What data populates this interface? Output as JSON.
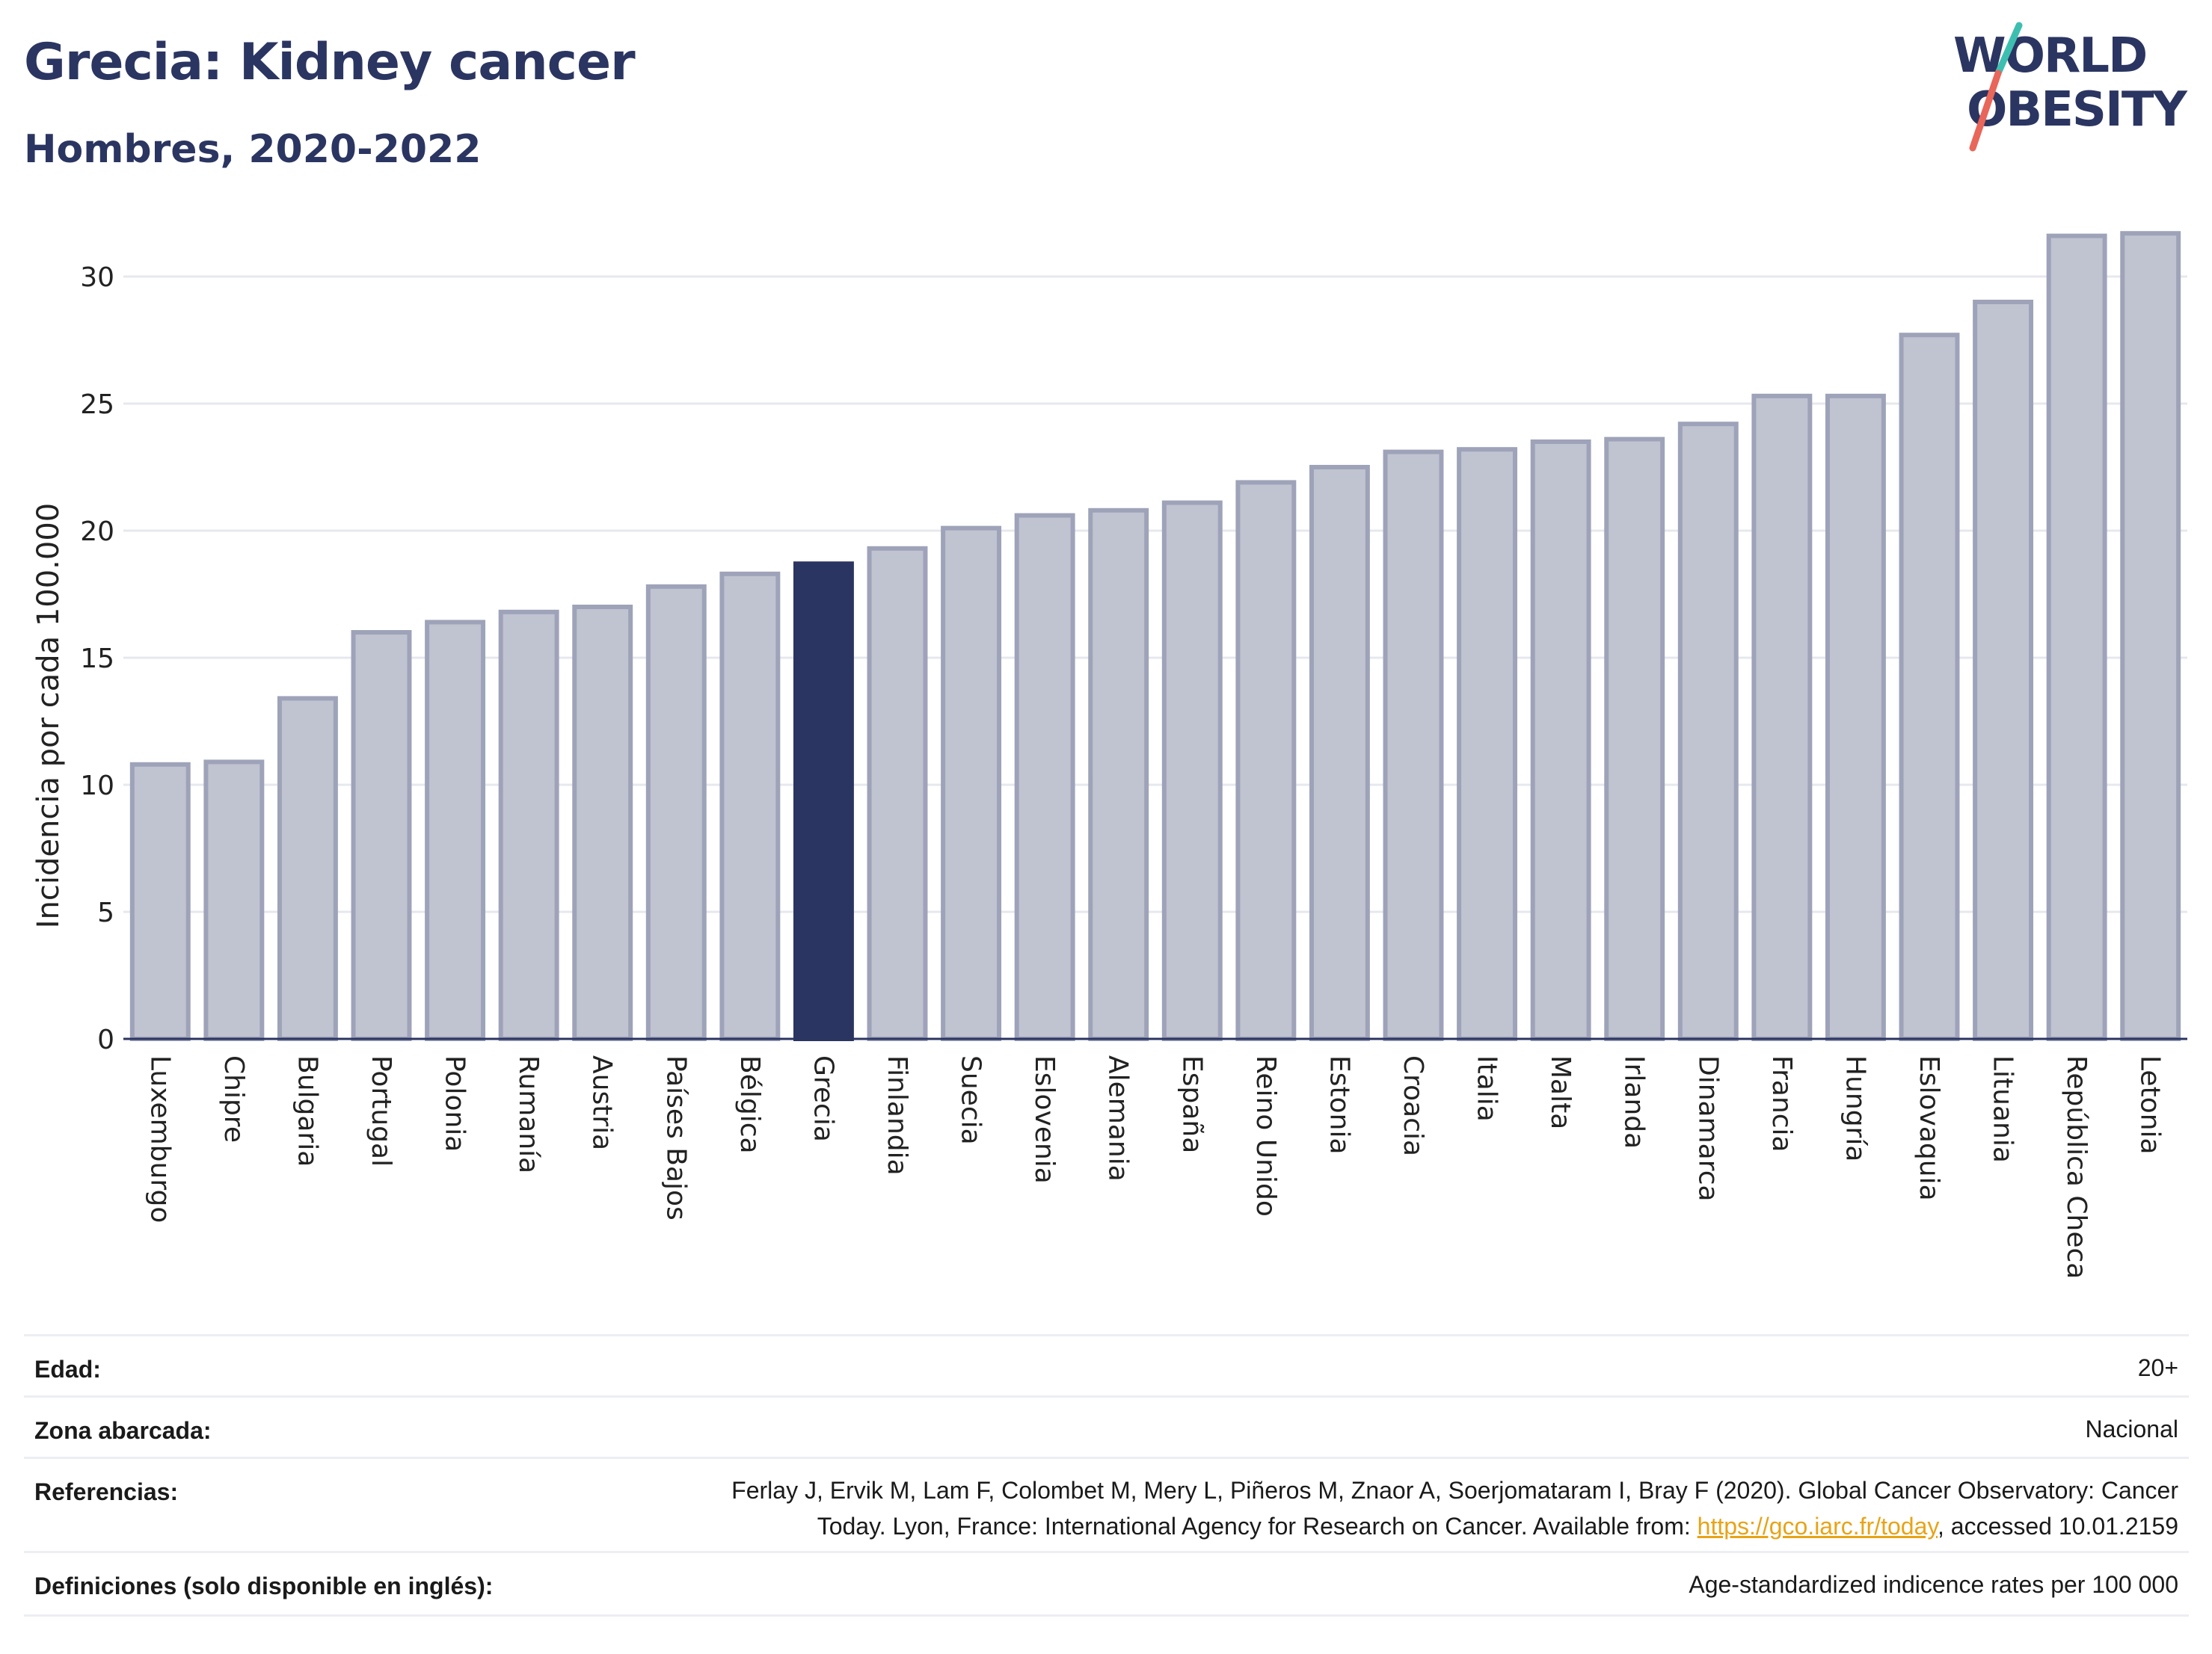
{
  "header": {
    "title": "Grecia: Kidney cancer",
    "subtitle": "Hombres, 2020-2022"
  },
  "logo": {
    "line1": "WORLD",
    "line2": "OBESITY"
  },
  "colors": {
    "highlight_bar": "#2b3561",
    "bar_fill": "#c0c3d0",
    "bar_outline": "#9ea3b9",
    "title": "#2b3561",
    "link": "#e8a317",
    "logo_teal": "#3dbfb0",
    "logo_red": "#e8665a"
  },
  "chart_data": {
    "type": "bar",
    "ylabel": "Incidencia por cada 100.000",
    "ylim": [
      0,
      32.5
    ],
    "yticks": [
      0,
      5,
      10,
      15,
      20,
      25,
      30
    ],
    "grid": true,
    "highlight": "Grecia",
    "categories": [
      "Luxemburgo",
      "Chipre",
      "Bulgaria",
      "Portugal",
      "Polonia",
      "Rumanía",
      "Austria",
      "Países Bajos",
      "Bélgica",
      "Grecia",
      "Finlandia",
      "Suecia",
      "Eslovenia",
      "Alemania",
      "España",
      "Reino Unido",
      "Estonia",
      "Croacia",
      "Italia",
      "Malta",
      "Irlanda",
      "Dinamarca",
      "Francia",
      "Hungría",
      "Eslovaquia",
      "Lituania",
      "República Checa",
      "Letonia"
    ],
    "values": [
      10.8,
      10.9,
      13.4,
      16.0,
      16.4,
      16.8,
      17.0,
      17.8,
      18.3,
      18.7,
      19.3,
      20.1,
      20.6,
      20.8,
      21.1,
      21.9,
      22.5,
      23.1,
      23.2,
      23.5,
      23.6,
      24.2,
      25.3,
      25.3,
      27.7,
      29.0,
      31.6,
      31.7
    ]
  },
  "meta": [
    {
      "label": "Edad:",
      "value": "20+"
    },
    {
      "label": "Zona abarcada:",
      "value": "Nacional"
    },
    {
      "label": "Referencias:",
      "value_line1": "Ferlay J, Ervik M, Lam F, Colombet M, Mery L, Piñeros M, Znaor A, Soerjomataram I, Bray F (2020). Global Cancer Observatory: Cancer",
      "value_line2_pre": "Today. Lyon, France: International Agency for Research on Cancer. Available from: ",
      "link": "https://gco.iarc.fr/today",
      "value_line2_post": ", accessed 10.01.2159"
    },
    {
      "label": "Definiciones (solo disponible en inglés):",
      "value": "Age-standardized indicence rates per 100 000"
    }
  ]
}
